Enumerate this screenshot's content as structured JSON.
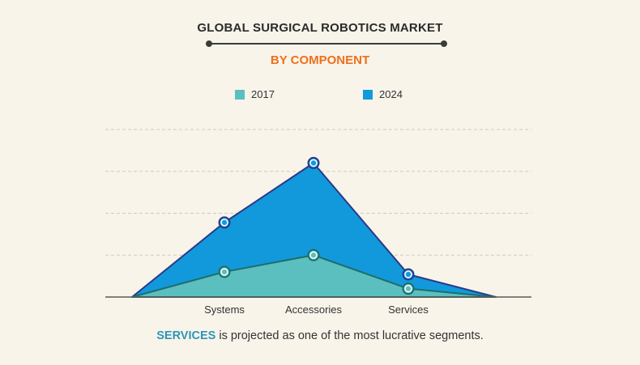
{
  "title": "GLOBAL SURGICAL ROBOTICS MARKET",
  "subtitle": "BY COMPONENT",
  "footnote": {
    "highlight": "SERVICES",
    "rest": " is projected as one of the most lucrative segments."
  },
  "colors": {
    "series_2017_fill": "#5bbfc0",
    "series_2017_line": "#1e6e6a",
    "series_2024_fill": "#1299db",
    "series_2024_line": "#2a3a8a",
    "subtitle": "#ee6f1c",
    "highlight": "#2e96b8"
  },
  "chart_data": {
    "type": "area",
    "categories": [
      "Systems",
      "Accessories",
      "Services"
    ],
    "series": [
      {
        "name": "2017",
        "values": [
          30,
          50,
          10
        ]
      },
      {
        "name": "2024",
        "values": [
          89,
          160,
          27
        ]
      }
    ],
    "ylim": [
      0,
      200
    ],
    "grid": true,
    "legend_position": "top-center",
    "baseline_endpoints": true
  }
}
